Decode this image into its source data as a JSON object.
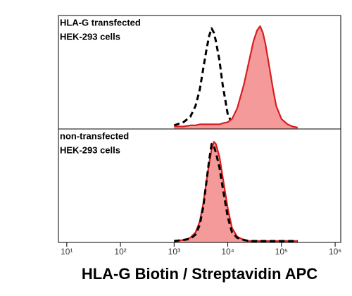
{
  "chart_data": [
    {
      "type": "area",
      "annotations": [
        "HLA-G transfected",
        "HEK-293 cells"
      ],
      "xscale": "log",
      "xlim": [
        7,
        1270000
      ],
      "ylim": [
        0,
        100
      ],
      "x": [
        1000,
        1500,
        2000,
        2500,
        3000,
        3500,
        4000,
        4500,
        5000,
        5500,
        6000,
        7000,
        8000,
        10000,
        12000,
        15000,
        20000,
        25000,
        30000,
        35000,
        40000,
        45000,
        50000,
        60000,
        70000,
        80000,
        100000,
        130000,
        160000,
        200000
      ],
      "series": [
        {
          "color": "#000000",
          "style": "dashed",
          "values": [
            2,
            5,
            10,
            20,
            35,
            55,
            72,
            85,
            92,
            88,
            80,
            62,
            40,
            12,
            4,
            1,
            0,
            0,
            0,
            0,
            0,
            0,
            0,
            0,
            0,
            0,
            0,
            0,
            0,
            0
          ]
        },
        {
          "color": "#d81e1e",
          "fill": "#f59a9a",
          "style": "filled",
          "values": [
            1,
            1,
            2,
            2,
            3,
            3,
            3,
            3,
            3,
            3,
            3,
            3,
            4,
            5,
            8,
            18,
            40,
            62,
            80,
            90,
            94,
            88,
            78,
            55,
            35,
            20,
            8,
            3,
            1,
            0
          ]
        }
      ]
    },
    {
      "type": "area",
      "annotations": [
        "non-transfected",
        "HEK-293 cells"
      ],
      "xscale": "log",
      "xlim": [
        7,
        1270000
      ],
      "ylim": [
        0,
        100
      ],
      "x": [
        1000,
        1500,
        2000,
        2500,
        3000,
        3500,
        4000,
        4500,
        5000,
        5500,
        6000,
        7000,
        8000,
        10000,
        12000,
        15000,
        20000,
        25000,
        30000,
        35000,
        40000,
        45000,
        50000,
        60000,
        70000,
        80000,
        100000,
        130000,
        160000,
        200000
      ],
      "series": [
        {
          "color": "#d81e1e",
          "fill": "#f59a9a",
          "style": "filled",
          "values": [
            0,
            1,
            3,
            8,
            18,
            35,
            55,
            72,
            85,
            92,
            90,
            78,
            60,
            30,
            12,
            4,
            1,
            0,
            0,
            0,
            0,
            0,
            0,
            0,
            0,
            0,
            0,
            0,
            0,
            0
          ]
        },
        {
          "color": "#000000",
          "style": "dashed",
          "values": [
            0,
            1,
            2,
            6,
            15,
            32,
            55,
            75,
            90,
            88,
            82,
            68,
            50,
            22,
            8,
            3,
            1,
            0,
            0,
            0,
            0,
            0,
            0,
            0,
            0,
            0,
            0,
            0,
            0,
            0
          ]
        }
      ],
      "xticks": [
        {
          "value": 10,
          "label": "10¹"
        },
        {
          "value": 100,
          "label": "10²"
        },
        {
          "value": 1000,
          "label": "10³"
        },
        {
          "value": 10000,
          "label": "10⁴"
        },
        {
          "value": 100000,
          "label": "10⁵"
        },
        {
          "value": 1000000,
          "label": "10⁶"
        }
      ],
      "xlabel": "HLA-G Biotin / Streptavidin APC"
    }
  ]
}
